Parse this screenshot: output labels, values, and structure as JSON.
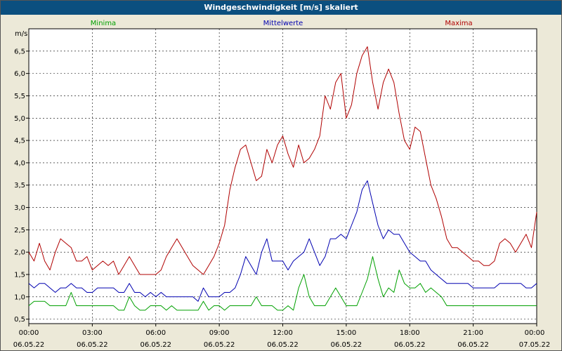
{
  "window": {
    "title": "Windgeschwindigkeit [m/s] skaliert"
  },
  "chart_data": {
    "type": "line",
    "title": "Windgeschwindigkeit [m/s] skaliert",
    "ylabel": "m/s",
    "xlabel": "",
    "ylim": [
      0.4,
      7.0
    ],
    "xlim": [
      0,
      24
    ],
    "grid": true,
    "legend_placement": "top",
    "y_ticks": [
      "0,5",
      "1,0",
      "1,5",
      "2,0",
      "2,5",
      "3,0",
      "3,5",
      "4,0",
      "4,5",
      "5,0",
      "5,5",
      "6,0",
      "6,5"
    ],
    "y_tick_values": [
      0.5,
      1.0,
      1.5,
      2.0,
      2.5,
      3.0,
      3.5,
      4.0,
      4.5,
      5.0,
      5.5,
      6.0,
      6.5
    ],
    "x_ticks": [
      {
        "time": "00:00",
        "date": "06.05.22",
        "hour": 0
      },
      {
        "time": "03:00",
        "date": "06.05.22",
        "hour": 3
      },
      {
        "time": "06:00",
        "date": "06.05.22",
        "hour": 6
      },
      {
        "time": "09:00",
        "date": "06.05.22",
        "hour": 9
      },
      {
        "time": "12:00",
        "date": "06.05.22",
        "hour": 12
      },
      {
        "time": "15:00",
        "date": "06.05.22",
        "hour": 15
      },
      {
        "time": "18:00",
        "date": "06.05.22",
        "hour": 18
      },
      {
        "time": "21:00",
        "date": "06.05.22",
        "hour": 21
      },
      {
        "time": "00:00",
        "date": "07.05.22",
        "hour": 24
      }
    ],
    "series": [
      {
        "name": "Minima",
        "color": "#00a000",
        "points": [
          [
            0.0,
            0.8
          ],
          [
            0.25,
            0.9
          ],
          [
            0.5,
            0.9
          ],
          [
            0.75,
            0.9
          ],
          [
            1.0,
            0.8
          ],
          [
            1.25,
            0.8
          ],
          [
            1.5,
            0.8
          ],
          [
            1.75,
            0.8
          ],
          [
            2.0,
            1.1
          ],
          [
            2.25,
            0.8
          ],
          [
            2.5,
            0.8
          ],
          [
            2.75,
            0.8
          ],
          [
            3.0,
            0.8
          ],
          [
            3.25,
            0.8
          ],
          [
            3.5,
            0.8
          ],
          [
            3.75,
            0.8
          ],
          [
            4.0,
            0.8
          ],
          [
            4.25,
            0.7
          ],
          [
            4.5,
            0.7
          ],
          [
            4.75,
            1.0
          ],
          [
            5.0,
            0.8
          ],
          [
            5.25,
            0.7
          ],
          [
            5.5,
            0.7
          ],
          [
            5.75,
            0.8
          ],
          [
            6.0,
            0.8
          ],
          [
            6.25,
            0.8
          ],
          [
            6.5,
            0.7
          ],
          [
            6.75,
            0.8
          ],
          [
            7.0,
            0.7
          ],
          [
            7.25,
            0.7
          ],
          [
            7.5,
            0.7
          ],
          [
            7.75,
            0.7
          ],
          [
            8.0,
            0.7
          ],
          [
            8.25,
            0.9
          ],
          [
            8.5,
            0.7
          ],
          [
            8.75,
            0.8
          ],
          [
            9.0,
            0.8
          ],
          [
            9.25,
            0.7
          ],
          [
            9.5,
            0.8
          ],
          [
            9.75,
            0.8
          ],
          [
            10.0,
            0.8
          ],
          [
            10.25,
            0.8
          ],
          [
            10.5,
            0.8
          ],
          [
            10.75,
            1.0
          ],
          [
            11.0,
            0.8
          ],
          [
            11.25,
            0.8
          ],
          [
            11.5,
            0.8
          ],
          [
            11.75,
            0.7
          ],
          [
            12.0,
            0.7
          ],
          [
            12.25,
            0.8
          ],
          [
            12.5,
            0.7
          ],
          [
            12.75,
            1.2
          ],
          [
            13.0,
            1.5
          ],
          [
            13.25,
            1.0
          ],
          [
            13.5,
            0.8
          ],
          [
            13.75,
            0.8
          ],
          [
            14.0,
            0.8
          ],
          [
            14.25,
            1.0
          ],
          [
            14.5,
            1.2
          ],
          [
            14.75,
            1.0
          ],
          [
            15.0,
            0.8
          ],
          [
            15.25,
            0.8
          ],
          [
            15.5,
            0.8
          ],
          [
            15.75,
            1.1
          ],
          [
            16.0,
            1.4
          ],
          [
            16.25,
            1.9
          ],
          [
            16.5,
            1.4
          ],
          [
            16.75,
            1.0
          ],
          [
            17.0,
            1.2
          ],
          [
            17.25,
            1.1
          ],
          [
            17.5,
            1.6
          ],
          [
            17.75,
            1.3
          ],
          [
            18.0,
            1.2
          ],
          [
            18.25,
            1.2
          ],
          [
            18.5,
            1.3
          ],
          [
            18.75,
            1.1
          ],
          [
            19.0,
            1.2
          ],
          [
            19.25,
            1.1
          ],
          [
            19.5,
            1.0
          ],
          [
            19.75,
            0.8
          ],
          [
            20.0,
            0.8
          ],
          [
            20.25,
            0.8
          ],
          [
            20.5,
            0.8
          ],
          [
            20.75,
            0.8
          ],
          [
            21.0,
            0.8
          ],
          [
            21.25,
            0.8
          ],
          [
            21.5,
            0.8
          ],
          [
            21.75,
            0.8
          ],
          [
            22.0,
            0.8
          ],
          [
            22.25,
            0.8
          ],
          [
            22.5,
            0.8
          ],
          [
            22.75,
            0.8
          ],
          [
            23.0,
            0.8
          ],
          [
            23.25,
            0.8
          ],
          [
            23.5,
            0.8
          ],
          [
            23.75,
            0.8
          ],
          [
            24.0,
            0.8
          ]
        ]
      },
      {
        "name": "Mittelwerte",
        "color": "#0000b0",
        "points": [
          [
            0.0,
            1.3
          ],
          [
            0.25,
            1.2
          ],
          [
            0.5,
            1.3
          ],
          [
            0.75,
            1.3
          ],
          [
            1.0,
            1.2
          ],
          [
            1.25,
            1.1
          ],
          [
            1.5,
            1.2
          ],
          [
            1.75,
            1.2
          ],
          [
            2.0,
            1.3
          ],
          [
            2.25,
            1.2
          ],
          [
            2.5,
            1.2
          ],
          [
            2.75,
            1.1
          ],
          [
            3.0,
            1.1
          ],
          [
            3.25,
            1.2
          ],
          [
            3.5,
            1.2
          ],
          [
            3.75,
            1.2
          ],
          [
            4.0,
            1.2
          ],
          [
            4.25,
            1.1
          ],
          [
            4.5,
            1.1
          ],
          [
            4.75,
            1.3
          ],
          [
            5.0,
            1.1
          ],
          [
            5.25,
            1.1
          ],
          [
            5.5,
            1.0
          ],
          [
            5.75,
            1.1
          ],
          [
            6.0,
            1.0
          ],
          [
            6.25,
            1.1
          ],
          [
            6.5,
            1.0
          ],
          [
            6.75,
            1.0
          ],
          [
            7.0,
            1.0
          ],
          [
            7.25,
            1.0
          ],
          [
            7.5,
            1.0
          ],
          [
            7.75,
            1.0
          ],
          [
            8.0,
            0.9
          ],
          [
            8.25,
            1.2
          ],
          [
            8.5,
            1.0
          ],
          [
            8.75,
            1.0
          ],
          [
            9.0,
            1.0
          ],
          [
            9.25,
            1.1
          ],
          [
            9.5,
            1.1
          ],
          [
            9.75,
            1.2
          ],
          [
            10.0,
            1.5
          ],
          [
            10.25,
            1.9
          ],
          [
            10.5,
            1.7
          ],
          [
            10.75,
            1.5
          ],
          [
            11.0,
            2.0
          ],
          [
            11.25,
            2.3
          ],
          [
            11.5,
            1.8
          ],
          [
            11.75,
            1.8
          ],
          [
            12.0,
            1.8
          ],
          [
            12.25,
            1.6
          ],
          [
            12.5,
            1.8
          ],
          [
            12.75,
            1.9
          ],
          [
            13.0,
            2.0
          ],
          [
            13.25,
            2.3
          ],
          [
            13.5,
            2.0
          ],
          [
            13.75,
            1.7
          ],
          [
            14.0,
            1.9
          ],
          [
            14.25,
            2.3
          ],
          [
            14.5,
            2.3
          ],
          [
            14.75,
            2.4
          ],
          [
            15.0,
            2.3
          ],
          [
            15.25,
            2.6
          ],
          [
            15.5,
            2.9
          ],
          [
            15.75,
            3.4
          ],
          [
            16.0,
            3.6
          ],
          [
            16.25,
            3.1
          ],
          [
            16.5,
            2.6
          ],
          [
            16.75,
            2.3
          ],
          [
            17.0,
            2.5
          ],
          [
            17.25,
            2.4
          ],
          [
            17.5,
            2.4
          ],
          [
            17.75,
            2.2
          ],
          [
            18.0,
            2.0
          ],
          [
            18.25,
            1.9
          ],
          [
            18.5,
            1.8
          ],
          [
            18.75,
            1.8
          ],
          [
            19.0,
            1.6
          ],
          [
            19.25,
            1.5
          ],
          [
            19.5,
            1.4
          ],
          [
            19.75,
            1.3
          ],
          [
            20.0,
            1.3
          ],
          [
            20.25,
            1.3
          ],
          [
            20.5,
            1.3
          ],
          [
            20.75,
            1.3
          ],
          [
            21.0,
            1.2
          ],
          [
            21.25,
            1.2
          ],
          [
            21.5,
            1.2
          ],
          [
            21.75,
            1.2
          ],
          [
            22.0,
            1.2
          ],
          [
            22.25,
            1.3
          ],
          [
            22.5,
            1.3
          ],
          [
            22.75,
            1.3
          ],
          [
            23.0,
            1.3
          ],
          [
            23.25,
            1.3
          ],
          [
            23.5,
            1.2
          ],
          [
            23.75,
            1.2
          ],
          [
            24.0,
            1.3
          ]
        ]
      },
      {
        "name": "Maxima",
        "color": "#b00000",
        "points": [
          [
            0.0,
            2.0
          ],
          [
            0.25,
            1.8
          ],
          [
            0.5,
            2.2
          ],
          [
            0.75,
            1.8
          ],
          [
            1.0,
            1.6
          ],
          [
            1.25,
            2.0
          ],
          [
            1.5,
            2.3
          ],
          [
            1.75,
            2.2
          ],
          [
            2.0,
            2.1
          ],
          [
            2.25,
            1.8
          ],
          [
            2.5,
            1.8
          ],
          [
            2.75,
            1.9
          ],
          [
            3.0,
            1.6
          ],
          [
            3.25,
            1.7
          ],
          [
            3.5,
            1.8
          ],
          [
            3.75,
            1.7
          ],
          [
            4.0,
            1.8
          ],
          [
            4.25,
            1.5
          ],
          [
            4.5,
            1.7
          ],
          [
            4.75,
            1.9
          ],
          [
            5.0,
            1.7
          ],
          [
            5.25,
            1.5
          ],
          [
            5.5,
            1.5
          ],
          [
            5.75,
            1.5
          ],
          [
            6.0,
            1.5
          ],
          [
            6.25,
            1.6
          ],
          [
            6.5,
            1.9
          ],
          [
            6.75,
            2.1
          ],
          [
            7.0,
            2.3
          ],
          [
            7.25,
            2.1
          ],
          [
            7.5,
            1.9
          ],
          [
            7.75,
            1.7
          ],
          [
            8.0,
            1.6
          ],
          [
            8.25,
            1.5
          ],
          [
            8.5,
            1.7
          ],
          [
            8.75,
            1.9
          ],
          [
            9.0,
            2.2
          ],
          [
            9.25,
            2.6
          ],
          [
            9.5,
            3.4
          ],
          [
            9.75,
            3.9
          ],
          [
            10.0,
            4.3
          ],
          [
            10.25,
            4.4
          ],
          [
            10.5,
            4.0
          ],
          [
            10.75,
            3.6
          ],
          [
            11.0,
            3.7
          ],
          [
            11.25,
            4.3
          ],
          [
            11.5,
            4.0
          ],
          [
            11.75,
            4.4
          ],
          [
            12.0,
            4.6
          ],
          [
            12.25,
            4.2
          ],
          [
            12.5,
            3.9
          ],
          [
            12.75,
            4.4
          ],
          [
            13.0,
            4.0
          ],
          [
            13.25,
            4.1
          ],
          [
            13.5,
            4.3
          ],
          [
            13.75,
            4.6
          ],
          [
            14.0,
            5.5
          ],
          [
            14.25,
            5.2
          ],
          [
            14.5,
            5.8
          ],
          [
            14.75,
            6.0
          ],
          [
            15.0,
            5.0
          ],
          [
            15.25,
            5.3
          ],
          [
            15.5,
            6.0
          ],
          [
            15.75,
            6.4
          ],
          [
            16.0,
            6.6
          ],
          [
            16.25,
            5.8
          ],
          [
            16.5,
            5.2
          ],
          [
            16.75,
            5.8
          ],
          [
            17.0,
            6.1
          ],
          [
            17.25,
            5.8
          ],
          [
            17.5,
            5.1
          ],
          [
            17.75,
            4.5
          ],
          [
            18.0,
            4.3
          ],
          [
            18.25,
            4.8
          ],
          [
            18.5,
            4.7
          ],
          [
            18.75,
            4.1
          ],
          [
            19.0,
            3.5
          ],
          [
            19.25,
            3.2
          ],
          [
            19.5,
            2.8
          ],
          [
            19.75,
            2.3
          ],
          [
            20.0,
            2.1
          ],
          [
            20.25,
            2.1
          ],
          [
            20.5,
            2.0
          ],
          [
            20.75,
            1.9
          ],
          [
            21.0,
            1.8
          ],
          [
            21.25,
            1.8
          ],
          [
            21.5,
            1.7
          ],
          [
            21.75,
            1.7
          ],
          [
            22.0,
            1.8
          ],
          [
            22.25,
            2.2
          ],
          [
            22.5,
            2.3
          ],
          [
            22.75,
            2.2
          ],
          [
            23.0,
            2.0
          ],
          [
            23.25,
            2.2
          ],
          [
            23.5,
            2.4
          ],
          [
            23.75,
            2.1
          ],
          [
            24.0,
            2.9
          ]
        ]
      }
    ]
  }
}
